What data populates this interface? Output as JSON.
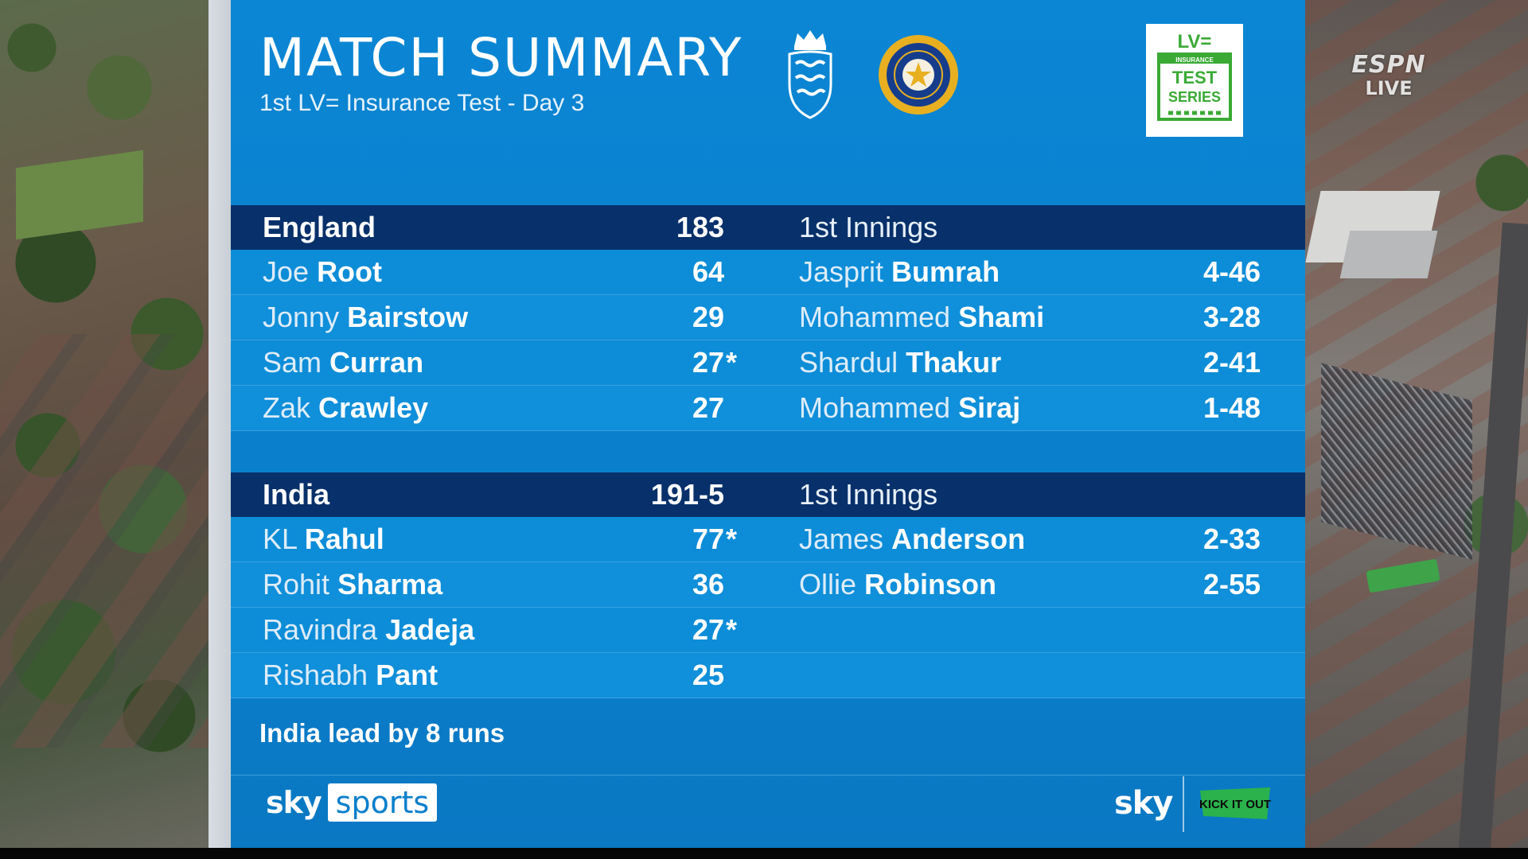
{
  "header": {
    "title": "MATCH SUMMARY",
    "subtitle": "1st LV= Insurance Test - Day 3"
  },
  "logos": {
    "series_logo_lines": [
      "LV=",
      "INSURANCE",
      "TEST",
      "SERIES"
    ],
    "broadcaster_overlay": {
      "brand": "ESPN",
      "status": "LIVE"
    },
    "footer_left": {
      "sky": "sky",
      "sports": "sports"
    },
    "footer_right": {
      "sky": "sky",
      "campaign": "KICK IT OUT"
    }
  },
  "innings": [
    {
      "team": "England",
      "total": "183",
      "innings_label": "1st Innings",
      "batters": [
        {
          "first": "Joe",
          "last": "Root",
          "runs": "64",
          "not_out": ""
        },
        {
          "first": "Jonny",
          "last": "Bairstow",
          "runs": "29",
          "not_out": ""
        },
        {
          "first": "Sam",
          "last": "Curran",
          "runs": "27",
          "not_out": "*"
        },
        {
          "first": "Zak",
          "last": "Crawley",
          "runs": "27",
          "not_out": ""
        }
      ],
      "bowlers": [
        {
          "first": "Jasprit",
          "last": "Bumrah",
          "figures": "4-46"
        },
        {
          "first": "Mohammed",
          "last": "Shami",
          "figures": "3-28"
        },
        {
          "first": "Shardul",
          "last": "Thakur",
          "figures": "2-41"
        },
        {
          "first": "Mohammed",
          "last": "Siraj",
          "figures": "1-48"
        }
      ]
    },
    {
      "team": "India",
      "total": "191-5",
      "innings_label": "1st Innings",
      "batters": [
        {
          "first": "KL",
          "last": "Rahul",
          "runs": "77",
          "not_out": "*"
        },
        {
          "first": "Rohit",
          "last": "Sharma",
          "runs": "36",
          "not_out": ""
        },
        {
          "first": "Ravindra",
          "last": "Jadeja",
          "runs": "27",
          "not_out": "*"
        },
        {
          "first": "Rishabh",
          "last": "Pant",
          "runs": "25",
          "not_out": ""
        }
      ],
      "bowlers": [
        {
          "first": "James",
          "last": "Anderson",
          "figures": "2-33"
        },
        {
          "first": "Ollie",
          "last": "Robinson",
          "figures": "2-55"
        }
      ]
    }
  ],
  "summary": {
    "lead_text": "India lead by 8 runs"
  },
  "colors": {
    "panel_blue": "#0a7fcc",
    "header_navy": "#08306a",
    "lv_green": "#3aaa35",
    "kick_it_out_green": "#2bb24c"
  }
}
